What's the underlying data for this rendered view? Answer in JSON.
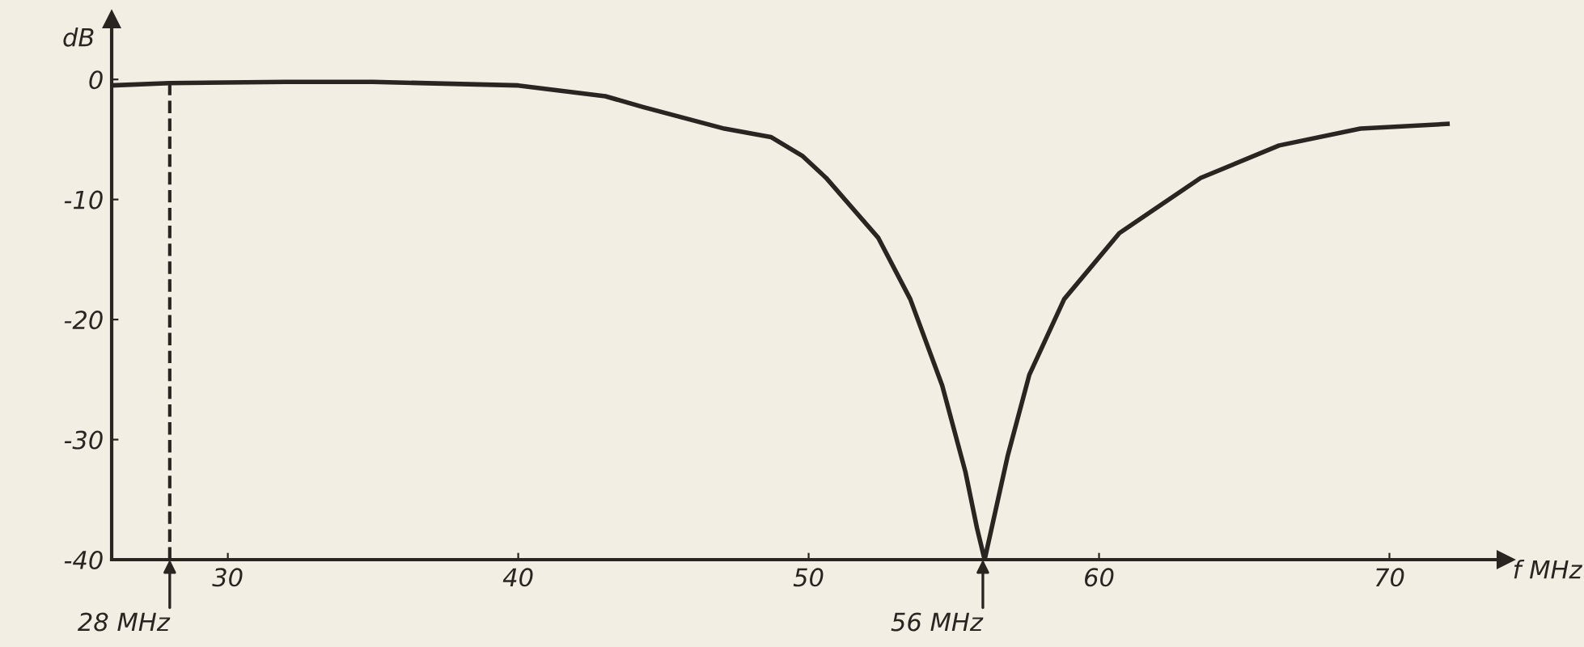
{
  "chart_data": {
    "type": "line",
    "xlabel": "f MHz",
    "ylabel": "dB",
    "xlim": [
      26,
      74
    ],
    "ylim": [
      -40,
      5
    ],
    "xticks": [
      30,
      40,
      50,
      60,
      70
    ],
    "yticks": [
      0,
      -10,
      -20,
      -30,
      -40
    ],
    "grid": false,
    "marker": "none",
    "line_style": "solid",
    "series": [
      {
        "color": "#2a2520",
        "x": [
          26,
          28,
          32,
          35,
          40,
          43,
          44.3,
          47.1,
          48.7,
          49.8,
          50.6,
          52.4,
          53.5,
          54.6,
          55.4,
          55.8,
          56.06,
          56.3,
          56.85,
          57.6,
          58.8,
          60.7,
          63.5,
          66.2,
          69.0,
          72.0
        ],
        "values": [
          -0.5,
          -0.3,
          -0.2,
          -0.2,
          -0.5,
          -1.4,
          -2.3,
          -4.1,
          -4.8,
          -6.4,
          -8.2,
          -13.2,
          -18.3,
          -25.5,
          -32.7,
          -37.4,
          -40,
          -37.4,
          -31.4,
          -24.6,
          -18.3,
          -12.8,
          -8.2,
          -5.5,
          -4.1,
          -3.7
        ]
      }
    ],
    "ref_lines": [
      {
        "axis": "x",
        "value": 28,
        "line_style": "dashed",
        "color": "#2a2520"
      }
    ],
    "annotations": [
      {
        "text": "28 MHz",
        "x": 28,
        "y": -40
      },
      {
        "text": "56 MHz",
        "x": 56,
        "y": -40
      }
    ]
  }
}
